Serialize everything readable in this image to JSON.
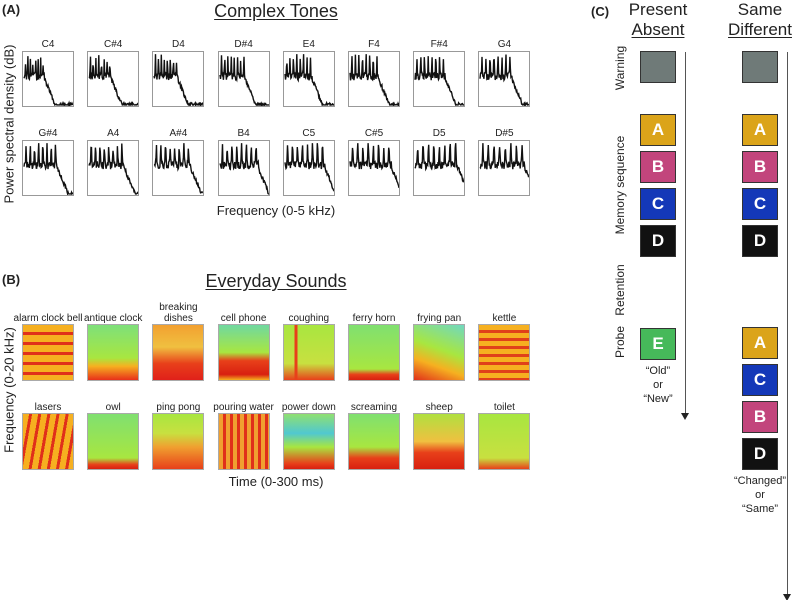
{
  "panel_a": {
    "label": "(A)",
    "title": "Complex Tones",
    "ylabel": "Power spectral density (dB)",
    "xlabel": "Frequency (0-5 kHz)",
    "tones": [
      "C4",
      "C#4",
      "D4",
      "D#4",
      "E4",
      "F4",
      "F#4",
      "G4",
      "G#4",
      "A4",
      "A#4",
      "B4",
      "C5",
      "C#5",
      "D5",
      "D#5"
    ]
  },
  "panel_b": {
    "label": "(B)",
    "title": "Everyday Sounds",
    "ylabel": "Frequency (0-20 kHz)",
    "xlabel": "Time (0-300 ms)",
    "sounds": [
      "alarm clock bell",
      "antique clock",
      "breaking dishes",
      "cell phone",
      "coughing",
      "ferry horn",
      "frying pan",
      "kettle",
      "lasers",
      "owl",
      "ping pong",
      "pouring water",
      "power down",
      "screaming",
      "sheep",
      "toilet"
    ]
  },
  "panel_c": {
    "label": "(C)",
    "task1": {
      "line1": "Present",
      "line2": "Absent"
    },
    "task2": {
      "line1": "Same",
      "line2": "Different"
    },
    "row_labels": {
      "warning": "Warning",
      "memory": "Memory sequence",
      "retention": "Retention",
      "probe": "Probe"
    },
    "memory_items": [
      "A",
      "B",
      "C",
      "D"
    ],
    "probe1": "E",
    "probe2": [
      "A",
      "C",
      "B",
      "D"
    ],
    "response1": [
      "“Old”",
      "or",
      "“New”"
    ],
    "response2": [
      "“Changed”",
      "or",
      "“Same”"
    ],
    "colors": {
      "warning": "#6f7a78",
      "A": "#dba41a",
      "B": "#c2457c",
      "C": "#1438b8",
      "D": "#111111",
      "E": "#46b95a"
    }
  }
}
